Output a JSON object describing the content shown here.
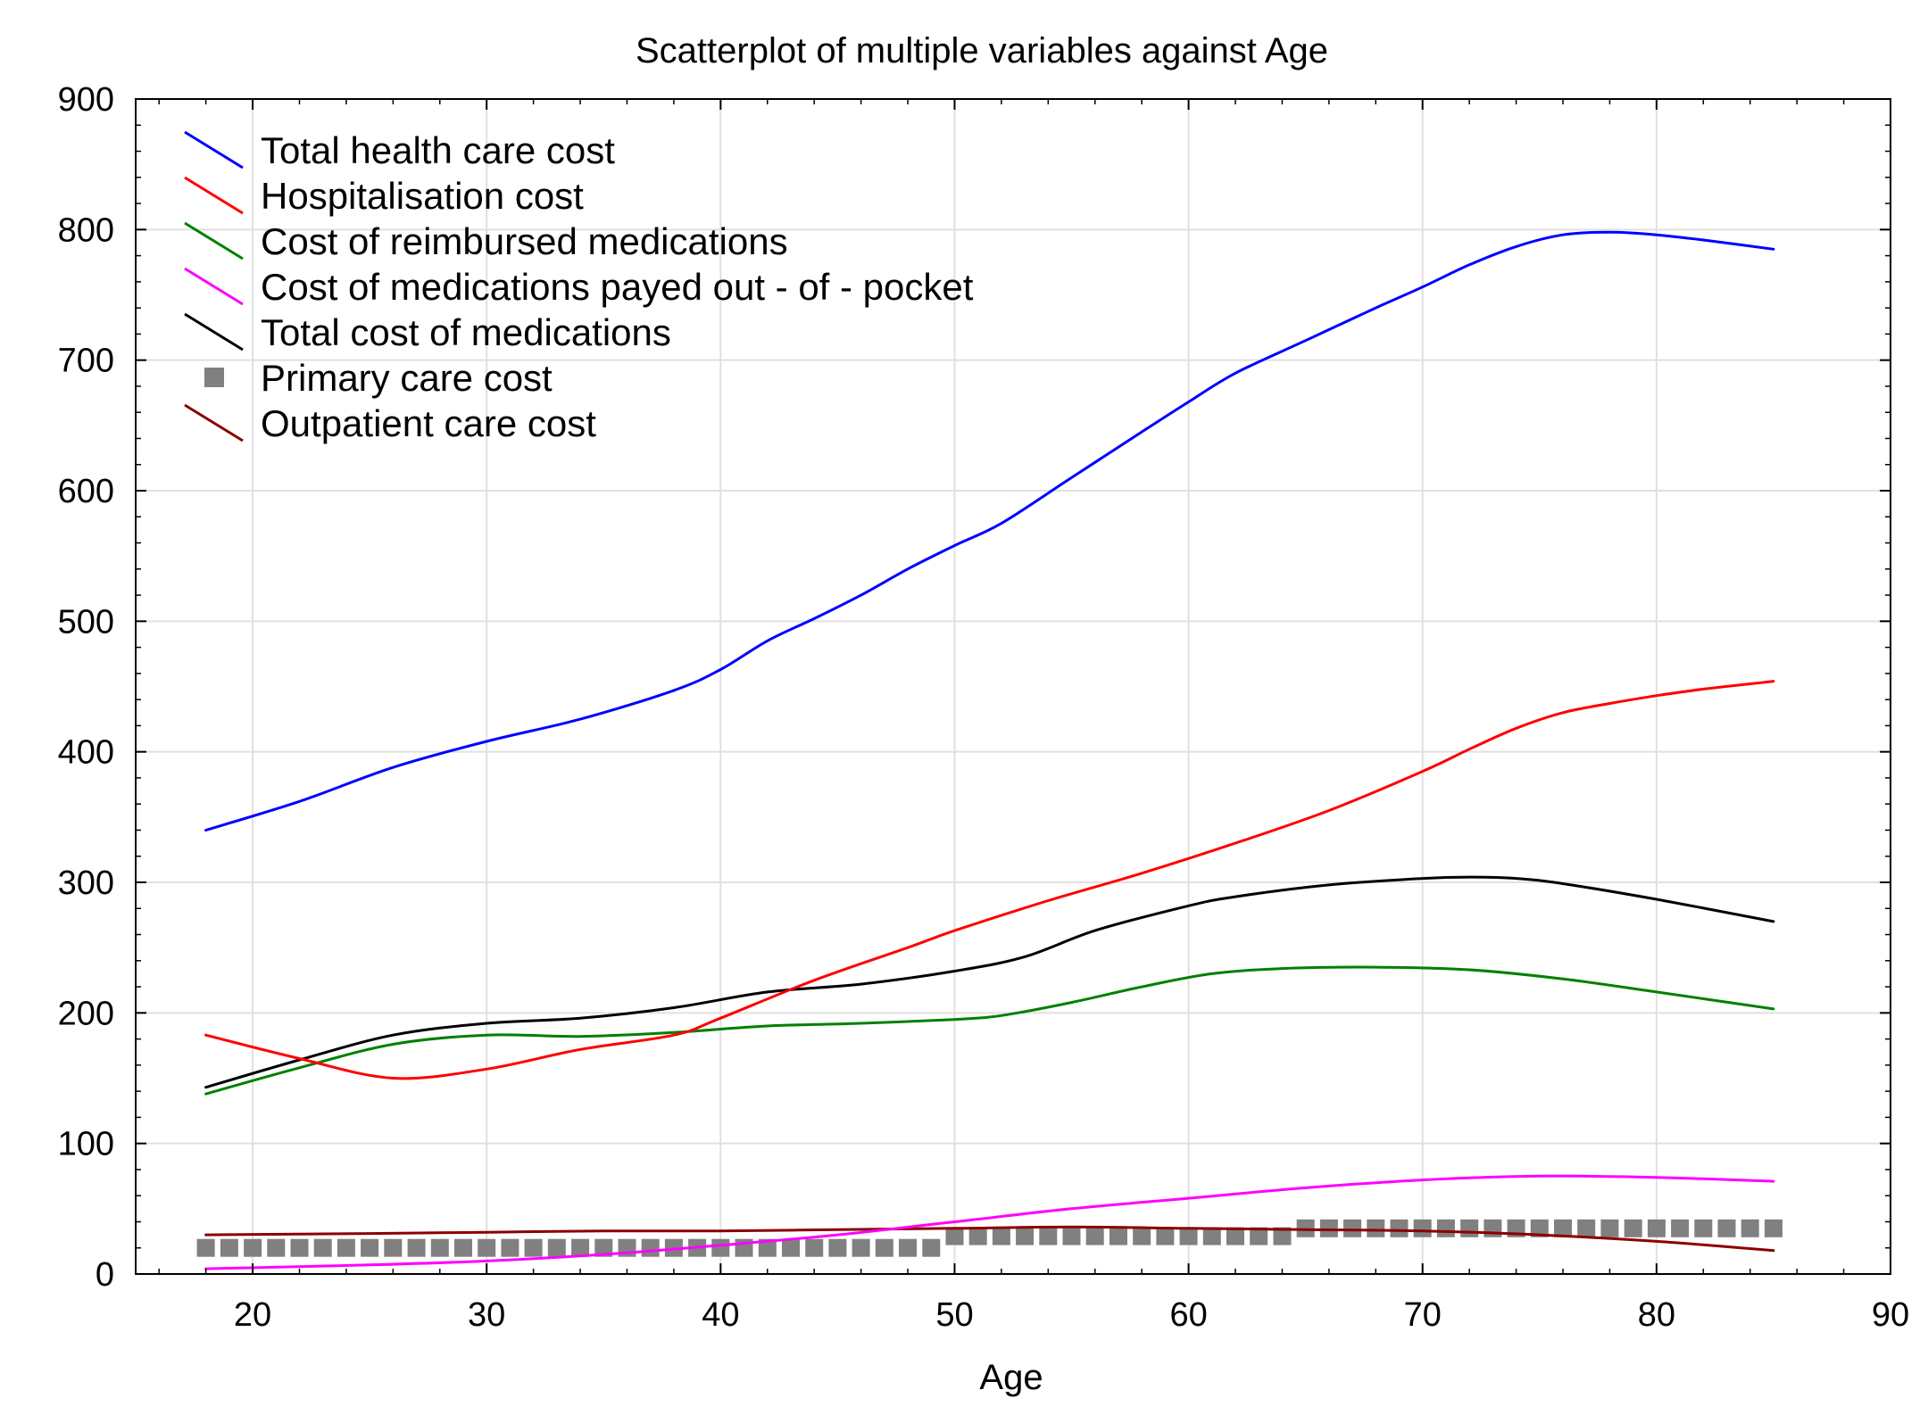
{
  "chart_data": {
    "type": "line",
    "title": "Scatterplot of multiple variables against Age",
    "xlabel": "Age",
    "ylabel": "",
    "xlim": [
      15,
      90
    ],
    "ylim": [
      0,
      900
    ],
    "xticks": [
      20,
      30,
      40,
      50,
      60,
      70,
      80,
      90
    ],
    "yticks": [
      0,
      100,
      200,
      300,
      400,
      500,
      600,
      700,
      800,
      900
    ],
    "grid": true,
    "legend_position": "top-left",
    "series": [
      {
        "name": "Total health care cost",
        "style": "line",
        "color": "#0000ff",
        "x": [
          18,
          22,
          26,
          30,
          34,
          38,
          40,
          42,
          44,
          46,
          48,
          50,
          52,
          55,
          58,
          60,
          62,
          65,
          68,
          70,
          72,
          74,
          76,
          78,
          80,
          82,
          85
        ],
        "y": [
          340,
          362,
          388,
          408,
          425,
          447,
          463,
          485,
          502,
          520,
          540,
          558,
          575,
          610,
          645,
          668,
          690,
          715,
          740,
          756,
          773,
          787,
          796,
          798,
          796,
          792,
          785
        ]
      },
      {
        "name": "Hospitalisation cost",
        "style": "line",
        "color": "#ff0000",
        "x": [
          18,
          22,
          26,
          30,
          34,
          38,
          40,
          44,
          48,
          50,
          54,
          58,
          62,
          66,
          70,
          72,
          74,
          76,
          78,
          80,
          82,
          85
        ],
        "y": [
          183,
          165,
          150,
          157,
          172,
          183,
          196,
          225,
          250,
          263,
          286,
          307,
          330,
          355,
          385,
          402,
          418,
          430,
          437,
          443,
          448,
          454
        ]
      },
      {
        "name": "Cost of reimbursed medications",
        "style": "line",
        "color": "#008000",
        "x": [
          18,
          22,
          26,
          30,
          34,
          38,
          42,
          46,
          50,
          52,
          55,
          58,
          61,
          64,
          68,
          72,
          76,
          80,
          85
        ],
        "y": [
          138,
          158,
          176,
          183,
          182,
          185,
          190,
          192,
          195,
          198,
          208,
          220,
          230,
          234,
          235,
          233,
          226,
          216,
          203
        ]
      },
      {
        "name": "Cost of medications payed out - of - pocket",
        "style": "line",
        "color": "#ff00ff",
        "x": [
          18,
          25,
          30,
          35,
          40,
          45,
          50,
          55,
          60,
          65,
          70,
          75,
          80,
          85
        ],
        "y": [
          4,
          7,
          10,
          15,
          22,
          30,
          40,
          50,
          58,
          66,
          72,
          75,
          74,
          71
        ]
      },
      {
        "name": "Total cost of medications",
        "style": "line",
        "color": "#000000",
        "x": [
          18,
          22,
          26,
          30,
          34,
          38,
          42,
          46,
          50,
          53,
          56,
          60,
          62,
          66,
          70,
          72,
          74,
          76,
          80,
          85
        ],
        "y": [
          143,
          164,
          183,
          192,
          196,
          204,
          216,
          222,
          232,
          243,
          263,
          282,
          289,
          298,
          303,
          304,
          303,
          299,
          287,
          270
        ]
      },
      {
        "name": "Primary care cost",
        "style": "markers",
        "color": "#808080",
        "x": [
          18,
          19,
          20,
          21,
          22,
          23,
          24,
          25,
          26,
          27,
          28,
          29,
          30,
          31,
          32,
          33,
          34,
          35,
          36,
          37,
          38,
          39,
          40,
          41,
          42,
          43,
          44,
          45,
          46,
          47,
          48,
          49,
          50,
          51,
          52,
          53,
          54,
          55,
          56,
          57,
          58,
          59,
          60,
          61,
          62,
          63,
          64,
          65,
          66,
          67,
          68,
          69,
          70,
          71,
          72,
          73,
          74,
          75,
          76,
          77,
          78,
          79,
          80,
          81,
          82,
          83,
          84,
          85
        ],
        "y": [
          20,
          20,
          20,
          20,
          20,
          20,
          20,
          20,
          20,
          20,
          20,
          20,
          20,
          20,
          20,
          20,
          20,
          20,
          20,
          20,
          20,
          20,
          20,
          20,
          20,
          20,
          20,
          20,
          20,
          20,
          20,
          20,
          29,
          29,
          29,
          29,
          29,
          29,
          29,
          29,
          29,
          29,
          29,
          29,
          29,
          29,
          29,
          35,
          35,
          35,
          35,
          35,
          35,
          35,
          35,
          35,
          35,
          35,
          35,
          35,
          35,
          35,
          35,
          35,
          35,
          35,
          35,
          35
        ]
      },
      {
        "name": "Outpatient care cost",
        "style": "line",
        "color": "#8b0000",
        "x": [
          18,
          25,
          30,
          35,
          40,
          45,
          50,
          55,
          60,
          65,
          70,
          75,
          80,
          85
        ],
        "y": [
          30,
          31,
          32,
          33,
          33,
          34,
          35,
          36,
          35,
          34,
          33,
          30,
          25,
          18
        ]
      }
    ]
  }
}
